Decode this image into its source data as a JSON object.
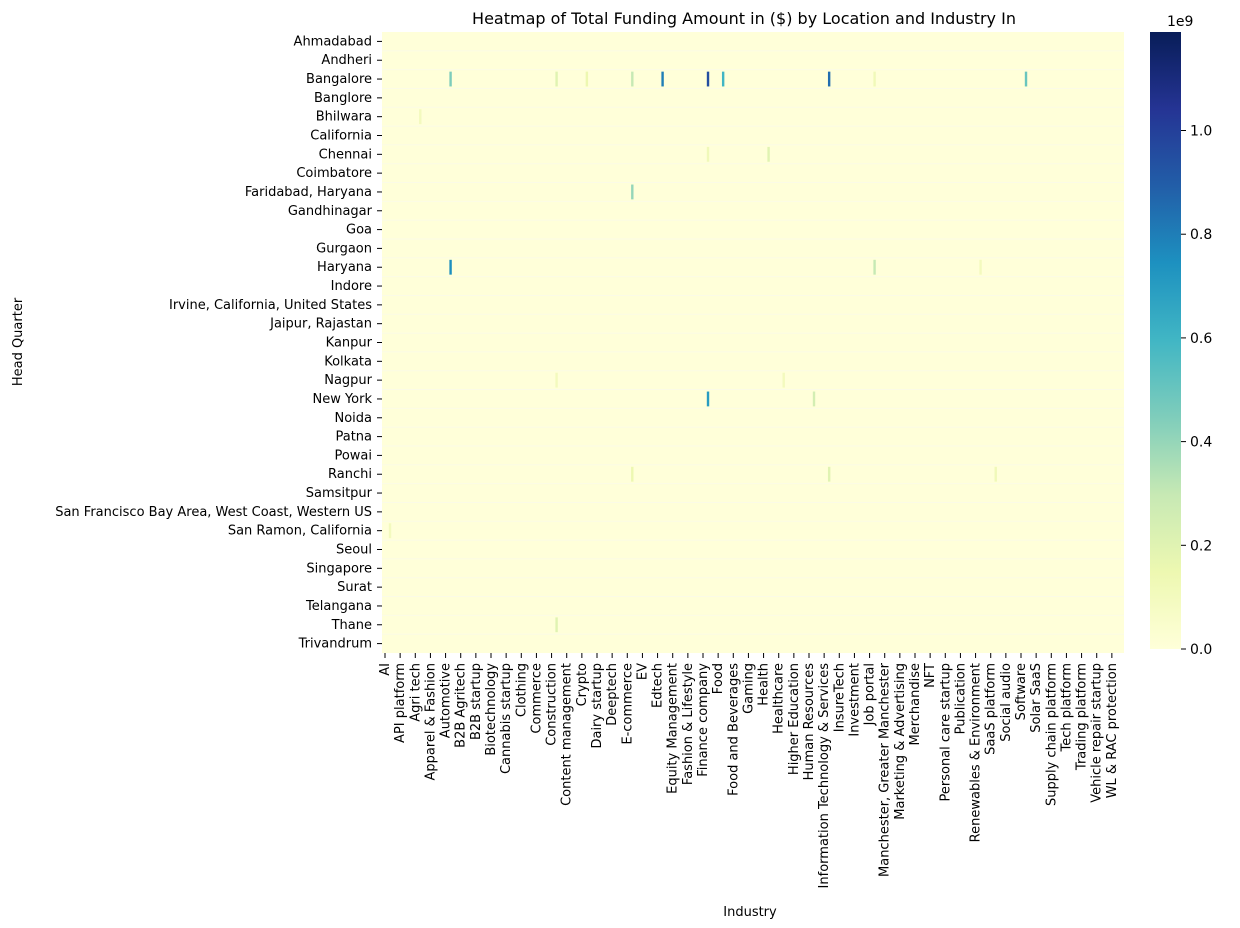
{
  "chart_data": {
    "type": "heatmap",
    "title": "Heatmap of Total Funding Amount in ($) by Location and Industry In",
    "xlabel": "Industry",
    "ylabel": "Head Quarter",
    "y_categories": [
      "Ahmadabad",
      "Andheri",
      "Bangalore",
      "Banglore",
      "Bhilwara",
      "California",
      "Chennai",
      "Coimbatore",
      "Faridabad, Haryana",
      "Gandhinagar",
      "Goa",
      "Gurgaon",
      "Haryana",
      "Indore",
      "Irvine, California, United States",
      "Jaipur, Rajastan",
      "Kanpur",
      "Kolkata",
      "Nagpur",
      "New York",
      "Noida",
      "Patna",
      "Powai",
      "Ranchi",
      "Samsitpur",
      "San Francisco Bay Area, West Coast, Western US",
      "San Ramon, California",
      "Seoul",
      "Singapore",
      "Surat",
      "Telangana",
      "Thane",
      "Trivandrum"
    ],
    "x_categories": [
      "AI",
      "API platform",
      "Agri tech",
      "Apparel & Fashion",
      "Automotive",
      "B2B Agritech",
      "B2B startup",
      "Biotechnology",
      "Cannabis startup",
      "Clothing",
      "Commerce",
      "Construction",
      "Content management",
      "Crypto",
      "Dairy startup",
      "Deeptech",
      "E-commerce",
      "EV",
      "Edtech",
      "Equity Management",
      "Fashion & Lifestyle",
      "Finance company",
      "Food",
      "Food and Beverages",
      "Gaming",
      "Health",
      "Healthcare",
      "Higher Education",
      "Human Resources",
      "Information Technology & Services",
      "InsureTech",
      "Investment",
      "Job portal",
      "Manchester, Greater Manchester",
      "Marketing & Advertising",
      "Merchandise",
      "NFT",
      "Personal care startup",
      "Publication",
      "Renewables & Environment",
      "SaaS platform",
      "Social audio",
      "Software",
      "Solar SaaS",
      "Supply chain platform",
      "Tech platform",
      "Trading platform",
      "Vehicle repair startup",
      "WL & RAC protection"
    ],
    "colorbar": {
      "colormap": "YlGnBu",
      "min": 0,
      "max": 1.19,
      "scale_label": "1e9",
      "ticks": [
        "0.0",
        "0.2",
        "0.4",
        "0.6",
        "0.8",
        "1.0"
      ]
    },
    "notable_cells": [
      {
        "row": "Bangalore",
        "column": "Finance company",
        "value": 0.95
      },
      {
        "row": "Bangalore",
        "column": "Edtech",
        "value": 0.8
      },
      {
        "row": "Bangalore",
        "column": "Information Technology & Services",
        "value": 0.85
      },
      {
        "row": "Bangalore",
        "column": "Food",
        "value": 0.6
      },
      {
        "row": "Bangalore",
        "column": "Automotive",
        "value": 0.45
      },
      {
        "row": "Bangalore",
        "column": "Software",
        "value": 0.5
      },
      {
        "row": "Bangalore",
        "column": "E-commerce",
        "value": 0.3
      },
      {
        "row": "Bangalore",
        "column": "Crypto",
        "value": 0.15
      },
      {
        "row": "Bangalore",
        "column": "Construction",
        "value": 0.2
      },
      {
        "row": "Bangalore",
        "column": "Job portal",
        "value": 0.12
      },
      {
        "row": "Haryana",
        "column": "Automotive",
        "value": 0.75
      },
      {
        "row": "Haryana",
        "column": "Job portal",
        "value": 0.3
      },
      {
        "row": "Haryana",
        "column": "Renewables & Environment",
        "value": 0.1
      },
      {
        "row": "Faridabad, Haryana",
        "column": "E-commerce",
        "value": 0.4
      },
      {
        "row": "New York",
        "column": "Finance company",
        "value": 0.7
      },
      {
        "row": "New York",
        "column": "Human Resources",
        "value": 0.25
      },
      {
        "row": "Chennai",
        "column": "Finance company",
        "value": 0.12
      },
      {
        "row": "Chennai",
        "column": "Health",
        "value": 0.2
      },
      {
        "row": "Ranchi",
        "column": "E-commerce",
        "value": 0.15
      },
      {
        "row": "Ranchi",
        "column": "Information Technology & Services",
        "value": 0.2
      },
      {
        "row": "Ranchi",
        "column": "SaaS platform",
        "value": 0.12
      },
      {
        "row": "Nagpur",
        "column": "Construction",
        "value": 0.1
      },
      {
        "row": "Nagpur",
        "column": "Healthcare",
        "value": 0.1
      },
      {
        "row": "Thane",
        "column": "Construction",
        "value": 0.2
      },
      {
        "row": "Bhilwara",
        "column": "Agri tech",
        "value": 0.1
      },
      {
        "row": "San Ramon, California",
        "column": "AI",
        "value": 0.1
      }
    ]
  }
}
